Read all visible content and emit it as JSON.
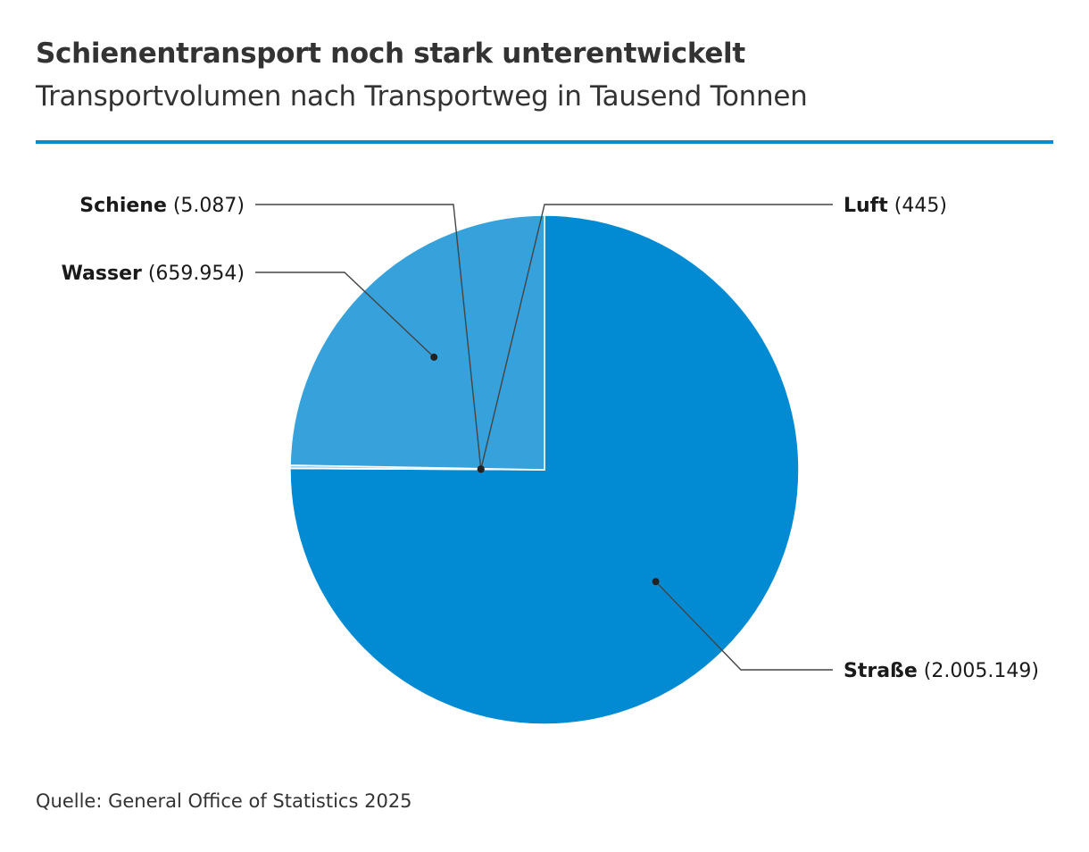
{
  "header": {
    "title": "Schienentransport noch stark unterentwickelt",
    "subtitle": "Transportvolumen nach Transportweg in Tausend Tonnen",
    "rule_color": "#0a8ad4"
  },
  "footer": {
    "source": "Quelle: General Office of Statistics 2025"
  },
  "chart_data": {
    "type": "pie",
    "title": "Schienentransport noch stark unterentwickelt",
    "subtitle": "Transportvolumen nach Transportweg in Tausend Tonnen",
    "slices": [
      {
        "name": "Straße",
        "value": 2005149,
        "value_label": "(2.005.149)",
        "color": "#028bd3"
      },
      {
        "name": "Luft",
        "value": 445,
        "value_label": "(445)",
        "color": "#d7ecf8"
      },
      {
        "name": "Schiene",
        "value": 5087,
        "value_label": "(5.087)",
        "color": "#9fd1ef"
      },
      {
        "name": "Wasser",
        "value": 659954,
        "value_label": "(659.954)",
        "color": "#36a1db"
      }
    ],
    "start_angle": "12 o'clock",
    "direction": "clockwise",
    "labels": "outside with leader lines",
    "legend": "none"
  }
}
